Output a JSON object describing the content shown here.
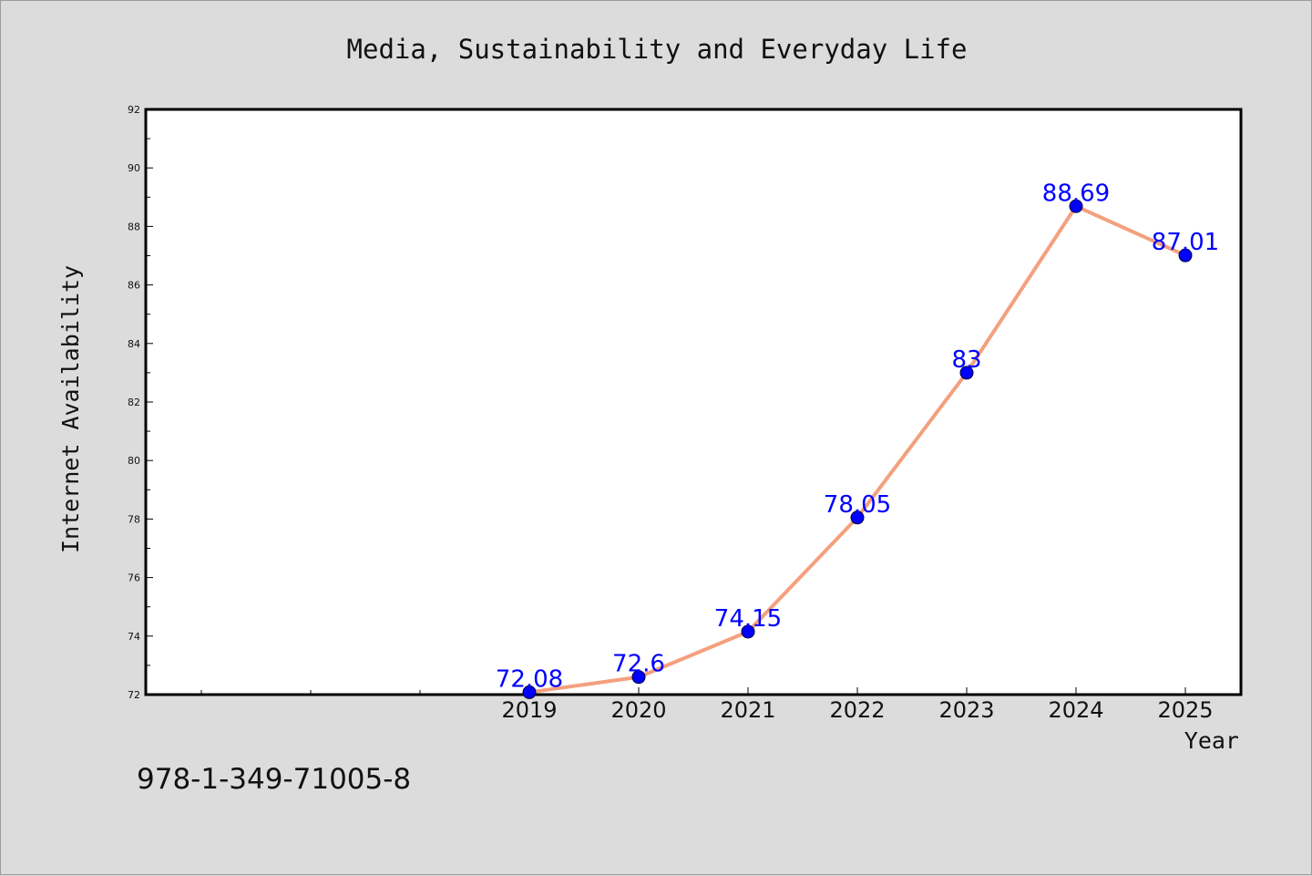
{
  "chart_data": {
    "type": "line",
    "title": "Media, Sustainability and Everyday Life",
    "xlabel": "Year",
    "ylabel": "Internet Availability",
    "categories": [
      "2019",
      "2020",
      "2021",
      "2022",
      "2023",
      "2024",
      "2025"
    ],
    "series": [
      {
        "values": [
          72.08,
          72.6,
          74.15,
          78.05,
          83,
          88.69,
          87.01
        ],
        "data_labels": [
          "72.08",
          "72.6",
          "74.15",
          "78.05",
          "83",
          "88.69",
          "87.01"
        ],
        "line_color": "#f4a07e",
        "marker_color": "#0000ff"
      }
    ],
    "ylim": [
      72,
      92
    ],
    "yticks": [
      72,
      74,
      76,
      78,
      80,
      82,
      84,
      86,
      88,
      90,
      92
    ],
    "grid": false,
    "legend": "none"
  },
  "annotation": "978-1-349-71005-8"
}
